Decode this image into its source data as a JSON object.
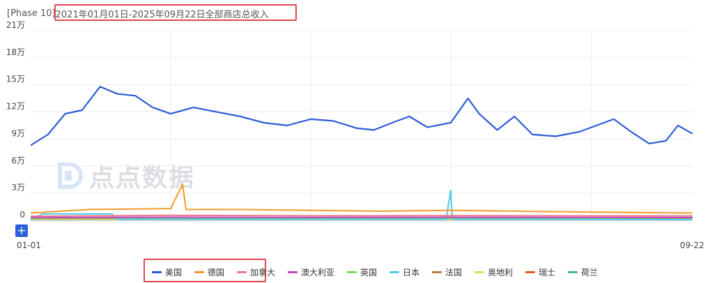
{
  "header": {
    "phase_label": "[Phase 10]",
    "title": "2021年01月01日-2025年09月22日全部商店总收入"
  },
  "watermark": {
    "text": "点点数据",
    "color": "#9aa3ad"
  },
  "zoom": {
    "label": "+"
  },
  "chart_data": {
    "type": "line",
    "title": "2021年01月01日-2025年09月22日全部商店总收入",
    "x_range": [
      "2021-01-01",
      "2025-09-22"
    ],
    "x_tick_labels": [
      "01-01",
      "09-22"
    ],
    "y_tick_labels": [
      "0",
      "3万",
      "6万",
      "9万",
      "12万",
      "15万",
      "18万",
      "21万"
    ],
    "y_ticks": [
      0,
      30000,
      60000,
      90000,
      120000,
      150000,
      180000,
      210000
    ],
    "ylim": [
      0,
      210000
    ],
    "grid": true,
    "legend_position": "bottom",
    "series": [
      {
        "name": "美国",
        "color": "#2c5bd8",
        "points": [
          [
            "2021-01-01",
            83000
          ],
          [
            "2021-02-15",
            95000
          ],
          [
            "2021-04-01",
            118000
          ],
          [
            "2021-05-15",
            122000
          ],
          [
            "2021-07-01",
            148000
          ],
          [
            "2021-08-15",
            140000
          ],
          [
            "2021-10-01",
            138000
          ],
          [
            "2021-11-15",
            125000
          ],
          [
            "2022-01-01",
            118000
          ],
          [
            "2022-03-01",
            125000
          ],
          [
            "2022-05-01",
            120000
          ],
          [
            "2022-07-01",
            115000
          ],
          [
            "2022-09-01",
            108000
          ],
          [
            "2022-11-01",
            105000
          ],
          [
            "2023-01-01",
            112000
          ],
          [
            "2023-03-01",
            110000
          ],
          [
            "2023-05-01",
            102000
          ],
          [
            "2023-06-15",
            100000
          ],
          [
            "2023-08-01",
            108000
          ],
          [
            "2023-09-15",
            115000
          ],
          [
            "2023-11-01",
            103000
          ],
          [
            "2024-01-01",
            108000
          ],
          [
            "2024-02-15",
            135000
          ],
          [
            "2024-03-15",
            118000
          ],
          [
            "2024-05-01",
            100000
          ],
          [
            "2024-06-15",
            115000
          ],
          [
            "2024-08-01",
            95000
          ],
          [
            "2024-10-01",
            93000
          ],
          [
            "2024-12-01",
            98000
          ],
          [
            "2025-01-15",
            105000
          ],
          [
            "2025-03-01",
            112000
          ],
          [
            "2025-04-15",
            98000
          ],
          [
            "2025-06-01",
            85000
          ],
          [
            "2025-07-15",
            88000
          ],
          [
            "2025-08-15",
            105000
          ],
          [
            "2025-09-22",
            96000
          ]
        ]
      },
      {
        "name": "德国",
        "color": "#f39a28",
        "points": [
          [
            "2021-01-01",
            8000
          ],
          [
            "2021-06-01",
            12000
          ],
          [
            "2022-01-01",
            13000
          ],
          [
            "2022-02-01",
            40000
          ],
          [
            "2022-02-10",
            12000
          ],
          [
            "2022-07-01",
            12000
          ],
          [
            "2023-01-01",
            11000
          ],
          [
            "2023-07-01",
            10000
          ],
          [
            "2024-01-01",
            11000
          ],
          [
            "2024-07-01",
            10000
          ],
          [
            "2025-01-01",
            9000
          ],
          [
            "2025-09-22",
            8000
          ]
        ]
      },
      {
        "name": "加拿大",
        "color": "#e87a8a",
        "points": [
          [
            "2021-01-01",
            4500
          ],
          [
            "2022-01-01",
            5500
          ],
          [
            "2023-01-01",
            5000
          ],
          [
            "2024-01-01",
            5200
          ],
          [
            "2025-09-22",
            4800
          ]
        ]
      },
      {
        "name": "澳大利亚",
        "color": "#c344c9",
        "points": [
          [
            "2021-01-01",
            3000
          ],
          [
            "2022-01-01",
            3500
          ],
          [
            "2023-01-01",
            3200
          ],
          [
            "2024-01-01",
            3400
          ],
          [
            "2025-09-22",
            3100
          ]
        ]
      },
      {
        "name": "英国",
        "color": "#7ed95e",
        "points": [
          [
            "2021-01-01",
            2500
          ],
          [
            "2022-01-01",
            2800
          ],
          [
            "2023-01-01",
            2600
          ],
          [
            "2024-01-01",
            2700
          ],
          [
            "2025-09-22",
            2600
          ]
        ]
      },
      {
        "name": "日本",
        "color": "#4ec9e8",
        "points": [
          [
            "2021-01-01",
            500
          ],
          [
            "2021-02-01",
            7000
          ],
          [
            "2021-08-01",
            7000
          ],
          [
            "2021-08-15",
            1000
          ],
          [
            "2023-12-20",
            1000
          ],
          [
            "2024-01-01",
            33000
          ],
          [
            "2024-01-05",
            1000
          ],
          [
            "2025-09-22",
            800
          ]
        ]
      },
      {
        "name": "法国",
        "color": "#b87a3c",
        "points": [
          [
            "2021-01-01",
            2000
          ],
          [
            "2023-01-01",
            2200
          ],
          [
            "2025-09-22",
            2000
          ]
        ]
      },
      {
        "name": "奥地利",
        "color": "#d8e05a",
        "points": [
          [
            "2021-01-01",
            1200
          ],
          [
            "2023-01-01",
            1300
          ],
          [
            "2025-09-22",
            1100
          ]
        ]
      },
      {
        "name": "瑞士",
        "color": "#e05a1e",
        "points": [
          [
            "2021-01-01",
            1500
          ],
          [
            "2023-01-01",
            1600
          ],
          [
            "2025-09-22",
            1400
          ]
        ]
      },
      {
        "name": "荷兰",
        "color": "#3fb89e",
        "points": [
          [
            "2021-01-01",
            1000
          ],
          [
            "2023-01-01",
            1100
          ],
          [
            "2025-09-22",
            1000
          ]
        ]
      }
    ]
  }
}
